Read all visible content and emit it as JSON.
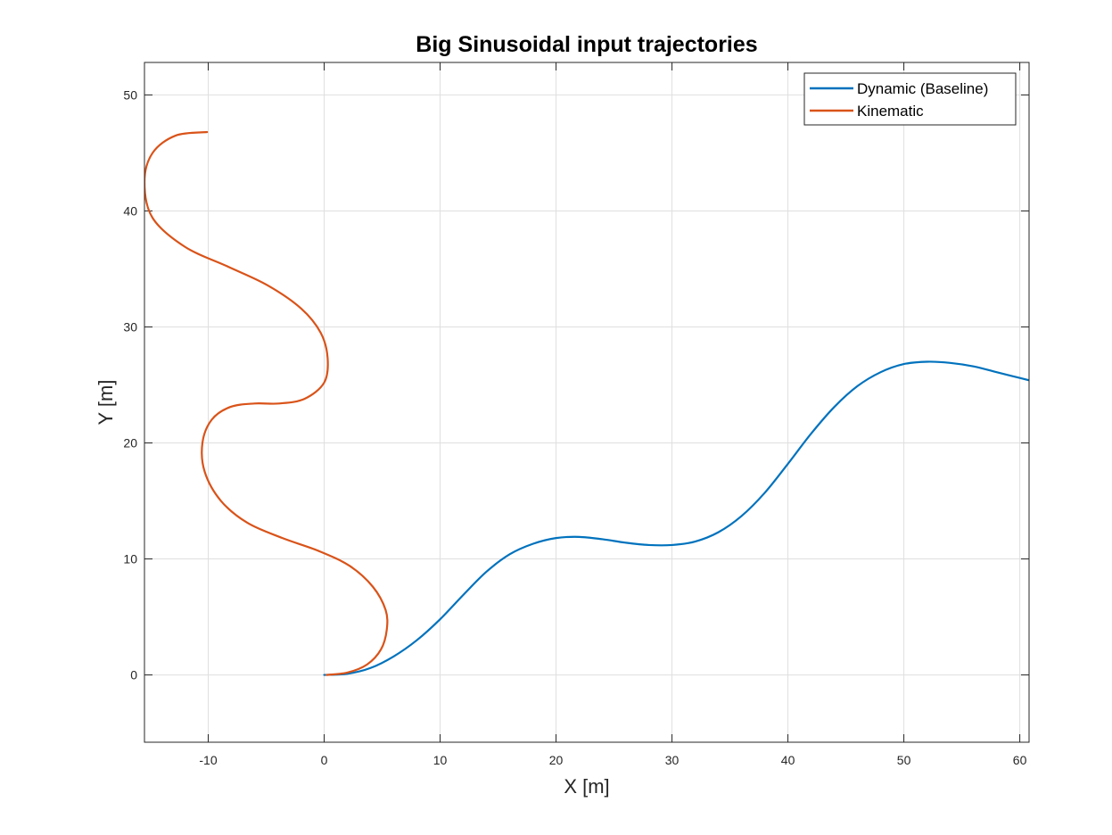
{
  "chart_data": {
    "type": "line",
    "title": "Big Sinusoidal input trajectories",
    "xlabel": "X [m]",
    "ylabel": "Y [m]",
    "xlim": [
      -15.5,
      60.8
    ],
    "ylim": [
      -5.8,
      52.8
    ],
    "xticks": [
      -10,
      0,
      10,
      20,
      30,
      40,
      50,
      60
    ],
    "yticks": [
      0,
      10,
      20,
      30,
      40,
      50
    ],
    "xtick_labels": [
      "-10",
      "0",
      "10",
      "20",
      "30",
      "40",
      "50",
      "60"
    ],
    "ytick_labels": [
      "0",
      "10",
      "20",
      "30",
      "40",
      "50"
    ],
    "grid": true,
    "legend_position": "top-right",
    "series": [
      {
        "name": "Dynamic (Baseline)",
        "color": "#0072bd",
        "x": [
          0,
          2,
          4,
          6,
          8,
          10,
          12,
          14,
          16,
          18,
          20,
          22,
          24,
          26,
          28,
          30,
          32,
          34,
          36,
          38,
          40,
          42,
          44,
          46,
          48,
          50,
          52,
          54,
          56,
          58,
          60.8
        ],
        "y": [
          0,
          0.1,
          0.6,
          1.6,
          3.0,
          4.8,
          6.9,
          8.9,
          10.4,
          11.3,
          11.8,
          11.9,
          11.7,
          11.4,
          11.2,
          11.2,
          11.5,
          12.3,
          13.7,
          15.7,
          18.2,
          20.8,
          23.1,
          24.9,
          26.1,
          26.8,
          27.0,
          26.9,
          26.6,
          26.1,
          25.4
        ]
      },
      {
        "name": "Kinematic",
        "color": "#d95319",
        "x": [
          0.2,
          2.0,
          3.7,
          4.9,
          5.4,
          5.3,
          4.2,
          2.2,
          -0.5,
          -3.6,
          -6.6,
          -8.9,
          -10.3,
          -10.5,
          -9.7,
          -8.1,
          -6.0,
          -3.9,
          -1.7,
          0,
          0.3,
          -0.3,
          -2.0,
          -4.9,
          -8.3,
          -12.0,
          -14.8,
          -15.5,
          -14.8,
          -12.8,
          -10.1
        ],
        "y": [
          0,
          0.2,
          0.9,
          2.2,
          3.9,
          5.6,
          7.6,
          9.4,
          10.7,
          11.8,
          13.1,
          15.0,
          17.5,
          20.0,
          22.0,
          23.1,
          23.4,
          23.4,
          23.8,
          25.2,
          27.3,
          29.5,
          31.6,
          33.6,
          35.2,
          36.9,
          39.4,
          42.5,
          45.0,
          46.5,
          46.8
        ]
      }
    ]
  }
}
